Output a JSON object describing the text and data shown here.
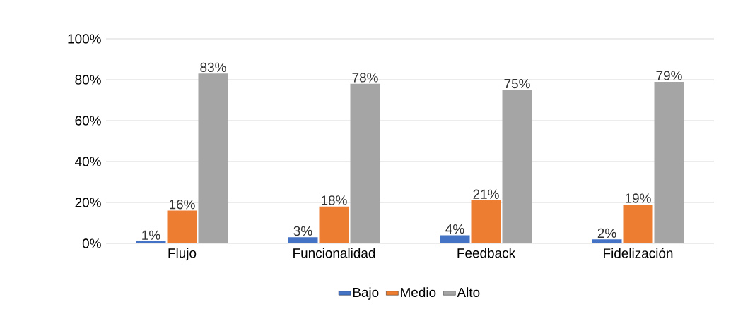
{
  "chart_data": {
    "type": "bar",
    "categories": [
      "Flujo",
      "Funcionalidad",
      "Feedback",
      "Fidelización"
    ],
    "series": [
      {
        "name": "Bajo",
        "color": "#4472c4",
        "values": [
          1,
          3,
          4,
          2
        ],
        "value_labels": [
          "1%",
          "3%",
          "4%",
          "2%"
        ]
      },
      {
        "name": "Medio",
        "color": "#ed7d31",
        "values": [
          16,
          18,
          21,
          19
        ],
        "value_labels": [
          "16%",
          "18%",
          "21%",
          "19%"
        ]
      },
      {
        "name": "Alto",
        "color": "#a5a5a5",
        "values": [
          83,
          78,
          75,
          79
        ],
        "value_labels": [
          "83%",
          "78%",
          "75%",
          "79%"
        ]
      }
    ],
    "ylim": [
      0,
      100
    ],
    "yticks": [
      {
        "value": 0,
        "label": "0%"
      },
      {
        "value": 20,
        "label": "20%"
      },
      {
        "value": 40,
        "label": "40%"
      },
      {
        "value": 60,
        "label": "60%"
      },
      {
        "value": 80,
        "label": "80%"
      },
      {
        "value": 100,
        "label": "100%"
      }
    ],
    "grid": "y",
    "legend": "bottom"
  }
}
